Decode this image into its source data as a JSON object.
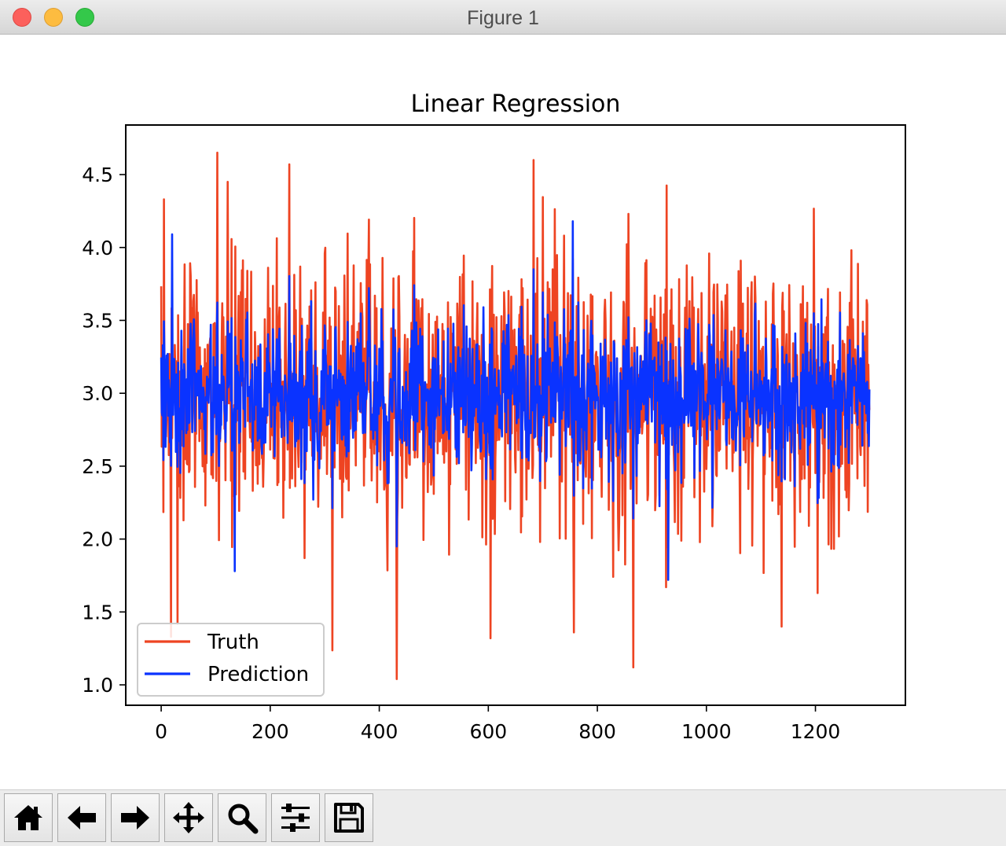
{
  "window": {
    "title": "Figure 1"
  },
  "toolbar": {
    "buttons": [
      {
        "name": "home-button",
        "icon": "home-icon"
      },
      {
        "name": "back-button",
        "icon": "arrow-left-icon"
      },
      {
        "name": "forward-button",
        "icon": "arrow-right-icon"
      },
      {
        "name": "pan-button",
        "icon": "move-icon"
      },
      {
        "name": "zoom-button",
        "icon": "magnifier-icon"
      },
      {
        "name": "subplots-button",
        "icon": "sliders-icon"
      },
      {
        "name": "save-button",
        "icon": "floppy-icon"
      }
    ]
  },
  "chart_data": {
    "type": "line",
    "title": "Linear Regression",
    "xlabel": "",
    "ylabel": "",
    "xlim": [
      -65,
      1365
    ],
    "ylim": [
      0.86,
      4.84
    ],
    "xticks": [
      0,
      200,
      400,
      600,
      800,
      1000,
      1200
    ],
    "yticks": [
      1.0,
      1.5,
      2.0,
      2.5,
      3.0,
      3.5,
      4.0,
      4.5
    ],
    "ytick_labels": [
      "1.0",
      "1.5",
      "2.0",
      "2.5",
      "3.0",
      "3.5",
      "4.0",
      "4.5"
    ],
    "grid": false,
    "legend_position": "lower-left",
    "n_points": 1300,
    "series": [
      {
        "name": "Truth",
        "color": "#ee4422",
        "summary": "noisy values around 3.0, range approx 1.04 to 4.65",
        "anchors": [
          [
            5,
            4.33
          ],
          [
            18,
            1.33
          ],
          [
            30,
            1.42
          ],
          [
            103,
            4.65
          ],
          [
            235,
            4.57
          ],
          [
            432,
            1.04
          ],
          [
            604,
            1.32
          ],
          [
            683,
            4.6
          ],
          [
            757,
            1.36
          ],
          [
            866,
            1.12
          ],
          [
            1138,
            1.4
          ],
          [
            1204,
            1.63
          ]
        ],
        "mean": 3.0,
        "spread": 0.45
      },
      {
        "name": "Prediction",
        "color": "#0a33ff",
        "summary": "noisy values around 3.0, range approx 1.72 to 4.18",
        "anchors": [
          [
            20,
            4.09
          ],
          [
            135,
            1.78
          ],
          [
            755,
            4.18
          ],
          [
            930,
            1.72
          ]
        ],
        "mean": 3.0,
        "spread": 0.28
      }
    ]
  }
}
